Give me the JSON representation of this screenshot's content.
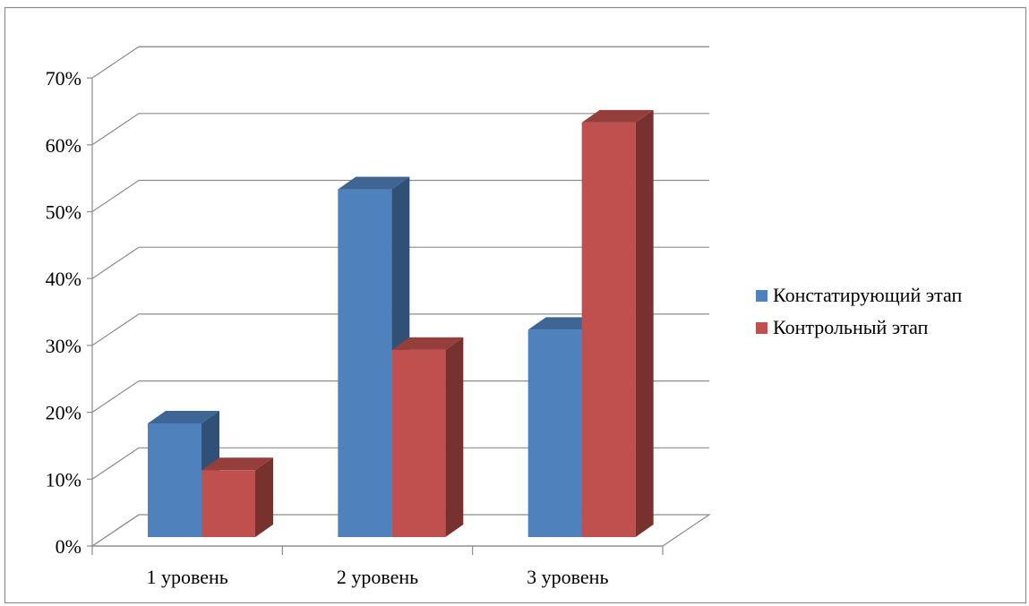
{
  "chart_data": {
    "type": "bar",
    "categories": [
      "1 уровень",
      "2 уровень",
      "3 уровень"
    ],
    "series": [
      {
        "name": "Констатирующий этап",
        "values": [
          17,
          52,
          31
        ],
        "color": "#4F81BD"
      },
      {
        "name": "Контрольный этап",
        "values": [
          10,
          28,
          62
        ],
        "color": "#C0504D"
      }
    ],
    "ylim": [
      0,
      70
    ],
    "yticks": [
      "0%",
      "10%",
      "20%",
      "30%",
      "40%",
      "50%",
      "60%",
      "70%"
    ],
    "y_tick_values": [
      0,
      10,
      20,
      30,
      40,
      50,
      60,
      70
    ],
    "grid": true,
    "legend_position": "right",
    "three_d": true
  }
}
